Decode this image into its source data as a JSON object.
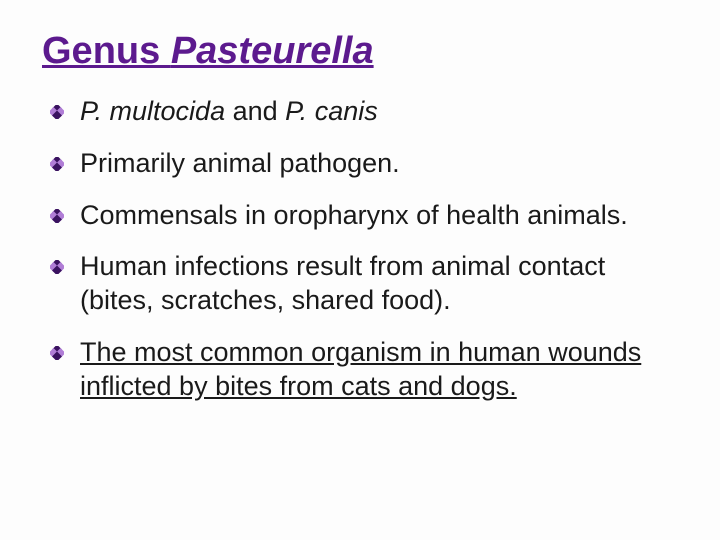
{
  "colors": {
    "title": "#5c1a8e",
    "body_text": "#1a1a1a",
    "bullet_dark": "#3a1260",
    "bullet_light": "#b07dd6",
    "background": "#fdfdfd"
  },
  "typography": {
    "title_fontsize": 38,
    "body_fontsize": 27,
    "title_weight": "bold",
    "font_family": "Arial"
  },
  "title": {
    "prefix": "Genus ",
    "italic": "Pasteurella"
  },
  "bullets": [
    {
      "segments": [
        {
          "text": "P. multocida",
          "italic": true
        },
        {
          "text": " and ",
          "italic": false
        },
        {
          "text": "P. canis",
          "italic": true
        }
      ],
      "underline": false
    },
    {
      "segments": [
        {
          "text": "Primarily animal pathogen.",
          "italic": false
        }
      ],
      "underline": false
    },
    {
      "segments": [
        {
          "text": "Commensals in oropharynx of health animals.",
          "italic": false
        }
      ],
      "underline": false
    },
    {
      "segments": [
        {
          "text": "Human infections result from animal contact (bites, scratches, shared food).",
          "italic": false
        }
      ],
      "underline": false
    },
    {
      "segments": [
        {
          "text": "The most common organism in human wounds inflicted by bites from cats and dogs.",
          "italic": false
        }
      ],
      "underline": true
    }
  ]
}
